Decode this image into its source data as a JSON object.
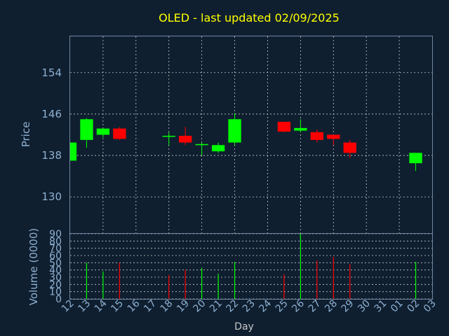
{
  "chart_data": [
    {
      "type": "candlestick",
      "title": "OLED - last updated 02/09/2025",
      "ylabel": "Price",
      "ylim": [
        123,
        161
      ],
      "yticks": [
        130,
        138,
        146,
        154
      ],
      "categories": [
        "12",
        "13",
        "14",
        "15",
        "16",
        "17",
        "18",
        "19",
        "20",
        "21",
        "22",
        "23",
        "24",
        "25",
        "26",
        "27",
        "28",
        "29",
        "30",
        "31",
        "01",
        "02",
        "03"
      ],
      "grid": true,
      "colors": {
        "up": "#00ff00",
        "down": "#ff0000",
        "background": "#0f1f30",
        "title": "#ffff00",
        "axis_text": "#8fb0d0"
      },
      "candles": [
        {
          "day": "12",
          "open": 137.0,
          "high": 140.5,
          "low": 137.0,
          "close": 140.5
        },
        {
          "day": "13",
          "open": 141.0,
          "high": 145.2,
          "low": 139.5,
          "close": 145.0
        },
        {
          "day": "14",
          "open": 142.0,
          "high": 143.2,
          "low": 141.5,
          "close": 143.2
        },
        {
          "day": "15",
          "open": 143.2,
          "high": 143.5,
          "low": 141.0,
          "close": 141.2
        },
        {
          "day": "18",
          "open": 141.8,
          "high": 142.5,
          "low": 140.0,
          "close": 141.8
        },
        {
          "day": "19",
          "open": 141.8,
          "high": 143.5,
          "low": 140.0,
          "close": 140.5
        },
        {
          "day": "20",
          "open": 140.0,
          "high": 140.5,
          "low": 138.0,
          "close": 140.2
        },
        {
          "day": "21",
          "open": 138.8,
          "high": 140.5,
          "low": 138.5,
          "close": 140.0
        },
        {
          "day": "22",
          "open": 140.5,
          "high": 146.2,
          "low": 140.0,
          "close": 145.0
        },
        {
          "day": "25",
          "open": 144.5,
          "high": 144.5,
          "low": 142.5,
          "close": 142.6
        },
        {
          "day": "26",
          "open": 142.8,
          "high": 145.0,
          "low": 142.5,
          "close": 143.3
        },
        {
          "day": "27",
          "open": 142.5,
          "high": 143.0,
          "low": 140.5,
          "close": 141.0
        },
        {
          "day": "28",
          "open": 142.0,
          "high": 142.0,
          "low": 140.0,
          "close": 141.2
        },
        {
          "day": "29",
          "open": 140.5,
          "high": 141.0,
          "low": 137.5,
          "close": 138.5
        },
        {
          "day": "02",
          "open": 136.5,
          "high": 138.5,
          "low": 135.0,
          "close": 138.5
        }
      ]
    },
    {
      "type": "bar",
      "ylabel": "Volume (0000)",
      "xlabel": "Day",
      "ylim": [
        0,
        90
      ],
      "yticks": [
        0,
        10,
        20,
        30,
        40,
        50,
        60,
        70,
        80,
        90
      ],
      "categories": [
        "12",
        "13",
        "14",
        "15",
        "16",
        "17",
        "18",
        "19",
        "20",
        "21",
        "22",
        "23",
        "24",
        "25",
        "26",
        "27",
        "28",
        "29",
        "30",
        "31",
        "01",
        "02",
        "03"
      ],
      "values": [
        {
          "day": "13",
          "value": 50,
          "dir": "up"
        },
        {
          "day": "14",
          "value": 38,
          "dir": "up"
        },
        {
          "day": "15",
          "value": 50,
          "dir": "down"
        },
        {
          "day": "18",
          "value": 33,
          "dir": "down"
        },
        {
          "day": "19",
          "value": 40,
          "dir": "down"
        },
        {
          "day": "20",
          "value": 43,
          "dir": "up"
        },
        {
          "day": "21",
          "value": 35,
          "dir": "up"
        },
        {
          "day": "22",
          "value": 51,
          "dir": "up"
        },
        {
          "day": "25",
          "value": 34,
          "dir": "down"
        },
        {
          "day": "26",
          "value": 90,
          "dir": "up"
        },
        {
          "day": "27",
          "value": 53,
          "dir": "down"
        },
        {
          "day": "28",
          "value": 58,
          "dir": "down"
        },
        {
          "day": "29",
          "value": 48,
          "dir": "down"
        },
        {
          "day": "02",
          "value": 51,
          "dir": "up"
        }
      ]
    }
  ]
}
